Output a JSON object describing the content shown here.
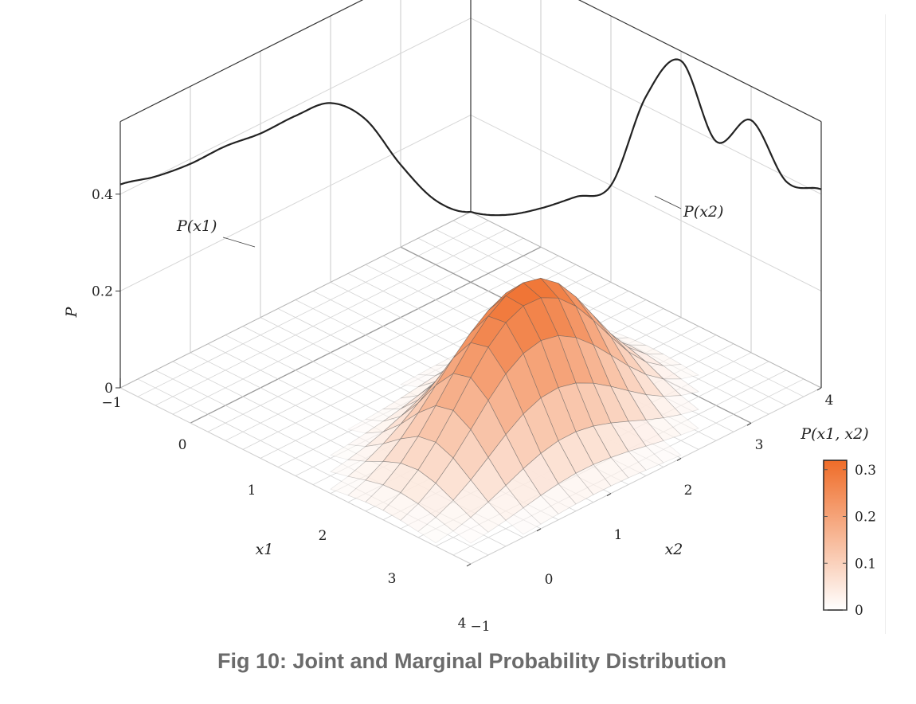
{
  "caption": "Fig 10: Joint and Marginal Probability Distribution",
  "colors": {
    "accent": "#ef6c28",
    "surface_low": "#ffffff",
    "surface_high": "#ef6c28",
    "grid": "#d4d4d4",
    "curve": "#222222"
  },
  "chart_data": {
    "type": "surface3d",
    "title": "",
    "axes": {
      "x1": {
        "label": "x1",
        "range": [
          -1,
          4
        ],
        "ticks": [
          "−1",
          "0",
          "1",
          "2",
          "3",
          "4"
        ]
      },
      "x2": {
        "label": "x2",
        "range": [
          -1,
          4
        ],
        "ticks": [
          "−1",
          "0",
          "1",
          "2",
          "3",
          "4"
        ]
      },
      "p": {
        "label": "P",
        "range": [
          0,
          0.55
        ],
        "ticks": [
          "0",
          "0.2",
          "0.4"
        ]
      }
    },
    "joint": {
      "label": "P(x1, x2)",
      "description": "Bivariate surface over x1 in [-1,4], x2 in [-1,4]; peak near (1.9, 2.6)",
      "peak_value": 0.31,
      "mixture": [
        {
          "weight": 0.6,
          "mu1": 2.2,
          "mu2": 2.7,
          "s1": 0.8,
          "s2": 0.55
        },
        {
          "weight": 0.4,
          "mu1": 1.2,
          "mu2": 2.3,
          "s1": 0.65,
          "s2": 0.55
        }
      ]
    },
    "marginals": [
      {
        "name": "P(x1)",
        "x": [
          -1,
          -0.5,
          0,
          0.5,
          1,
          1.5,
          2,
          2.5,
          3,
          3.5,
          4
        ],
        "y": [
          0.0,
          0.06,
          0.17,
          0.3,
          0.37,
          0.38,
          0.38,
          0.39,
          0.39,
          0.4,
          0.42
        ]
      },
      {
        "name": "P(x2)",
        "x": [
          -1,
          -0.5,
          0,
          0.5,
          1,
          1.5,
          2,
          2.5,
          3,
          3.5,
          4
        ],
        "y": [
          0.0,
          0.03,
          0.08,
          0.14,
          0.2,
          0.42,
          0.53,
          0.4,
          0.48,
          0.39,
          0.41
        ]
      }
    ],
    "colorbar": {
      "label": "P(x1, x2)",
      "ticks": [
        "0",
        "0.1",
        "0.2",
        "0.3"
      ],
      "tick_values": [
        0,
        0.1,
        0.2,
        0.3
      ],
      "max": 0.32
    },
    "grid": true
  }
}
